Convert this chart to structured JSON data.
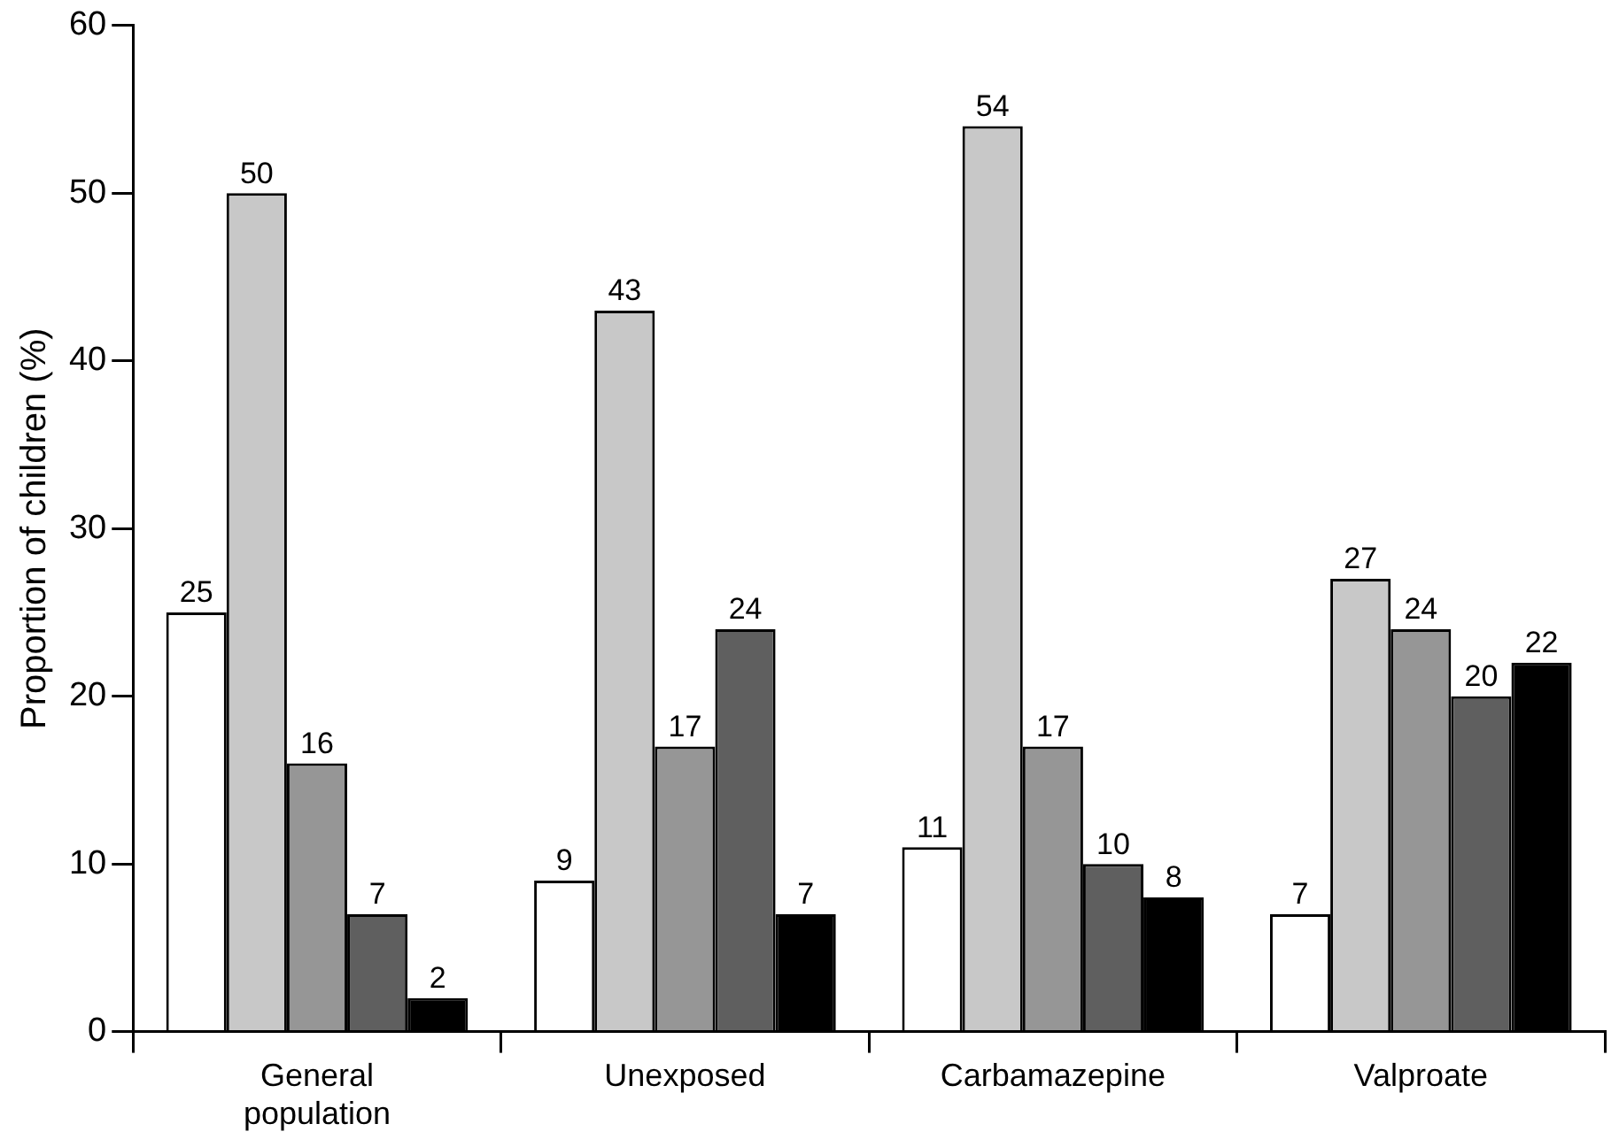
{
  "chart_data": {
    "type": "bar",
    "ylabel": "Proportion of children (%)",
    "categories": [
      "General population",
      "Unexposed",
      "Carbamazepine",
      "Valproate"
    ],
    "series": [
      {
        "color": "#ffffff",
        "values": [
          25,
          9,
          11,
          7
        ]
      },
      {
        "color": "#c8c8c8",
        "values": [
          50,
          43,
          54,
          27
        ]
      },
      {
        "color": "#969696",
        "values": [
          16,
          17,
          17,
          24
        ]
      },
      {
        "color": "#5f5f5f",
        "values": [
          7,
          24,
          10,
          20
        ]
      },
      {
        "color": "#000000",
        "values": [
          2,
          7,
          8,
          22
        ]
      }
    ],
    "ylim": [
      0,
      60
    ],
    "yticks": [
      0,
      10,
      20,
      30,
      40,
      50,
      60
    ],
    "grid": false,
    "legend": false,
    "data_labels": true
  }
}
